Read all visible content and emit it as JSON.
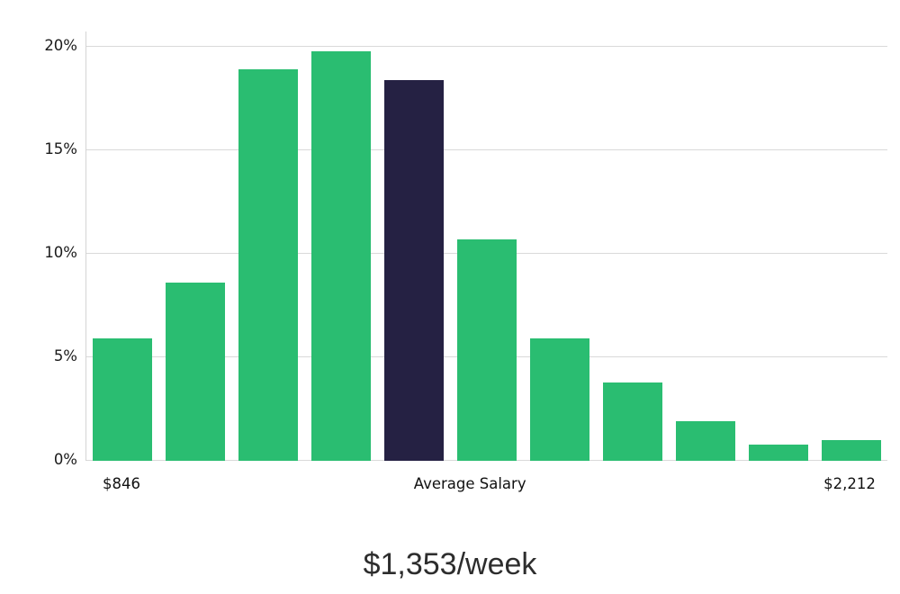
{
  "chart_data": {
    "type": "bar",
    "title": "",
    "values": [
      5.9,
      8.6,
      18.9,
      19.8,
      18.4,
      10.7,
      5.9,
      3.8,
      1.9,
      0.8,
      1.0
    ],
    "highlight_index": 4,
    "bar_color": "#2abd71",
    "highlight_color": "#252143",
    "grid_color": "#d9d9d9",
    "text_color": "#1a1a1a",
    "ylim": [
      0,
      20
    ],
    "y_ticks": [
      0,
      5,
      10,
      15,
      20
    ],
    "y_tick_labels": [
      "0%",
      "5%",
      "10%",
      "15%",
      "20%"
    ],
    "x_axis": {
      "left_label": "$846",
      "center_label": "Average Salary",
      "right_label": "$2,212"
    },
    "grid": "horizontal",
    "legend": "none",
    "caption": "$1,353/week"
  }
}
